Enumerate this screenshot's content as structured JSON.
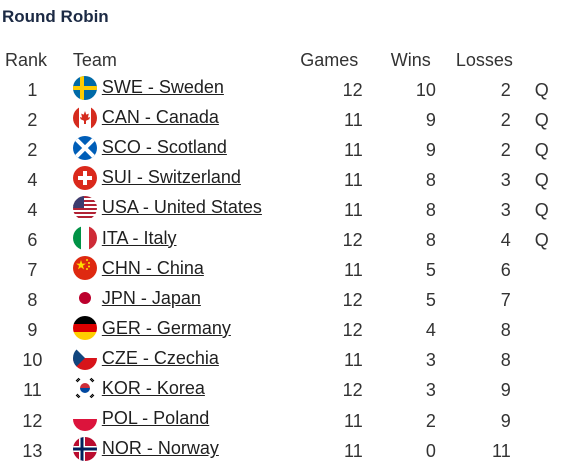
{
  "title": "Round Robin",
  "columns": {
    "rank": "Rank",
    "team": "Team",
    "games": "Games",
    "wins": "Wins",
    "losses": "Losses"
  },
  "rows": [
    {
      "rank": "1",
      "team": "SWE - Sweden",
      "games": "12",
      "wins": "10",
      "losses": "2",
      "q": "Q",
      "flag": "sweden-flag-icon"
    },
    {
      "rank": "2",
      "team": "CAN - Canada",
      "games": "11",
      "wins": "9",
      "losses": "2",
      "q": "Q",
      "flag": "canada-flag-icon"
    },
    {
      "rank": "2",
      "team": "SCO - Scotland",
      "games": "11",
      "wins": "9",
      "losses": "2",
      "q": "Q",
      "flag": "scotland-flag-icon"
    },
    {
      "rank": "4",
      "team": "SUI - Switzerland",
      "games": "11",
      "wins": "8",
      "losses": "3",
      "q": "Q",
      "flag": "switzerland-flag-icon"
    },
    {
      "rank": "4",
      "team": "USA - United States",
      "games": "11",
      "wins": "8",
      "losses": "3",
      "q": "Q",
      "flag": "usa-flag-icon"
    },
    {
      "rank": "6",
      "team": "ITA - Italy",
      "games": "12",
      "wins": "8",
      "losses": "4",
      "q": "Q",
      "flag": "italy-flag-icon"
    },
    {
      "rank": "7",
      "team": "CHN - China",
      "games": "11",
      "wins": "5",
      "losses": "6",
      "q": "",
      "flag": "china-flag-icon"
    },
    {
      "rank": "8",
      "team": "JPN - Japan",
      "games": "12",
      "wins": "5",
      "losses": "7",
      "q": "",
      "flag": "japan-flag-icon"
    },
    {
      "rank": "9",
      "team": "GER - Germany",
      "games": "12",
      "wins": "4",
      "losses": "8",
      "q": "",
      "flag": "germany-flag-icon"
    },
    {
      "rank": "10",
      "team": "CZE - Czechia",
      "games": "11",
      "wins": "3",
      "losses": "8",
      "q": "",
      "flag": "czechia-flag-icon"
    },
    {
      "rank": "11",
      "team": "KOR - Korea",
      "games": "12",
      "wins": "3",
      "losses": "9",
      "q": "",
      "flag": "korea-flag-icon"
    },
    {
      "rank": "12",
      "team": "POL - Poland",
      "games": "11",
      "wins": "2",
      "losses": "9",
      "q": "",
      "flag": "poland-flag-icon"
    },
    {
      "rank": "13",
      "team": "NOR - Norway",
      "games": "11",
      "wins": "0",
      "losses": "11",
      "q": "",
      "flag": "norway-flag-icon"
    }
  ]
}
